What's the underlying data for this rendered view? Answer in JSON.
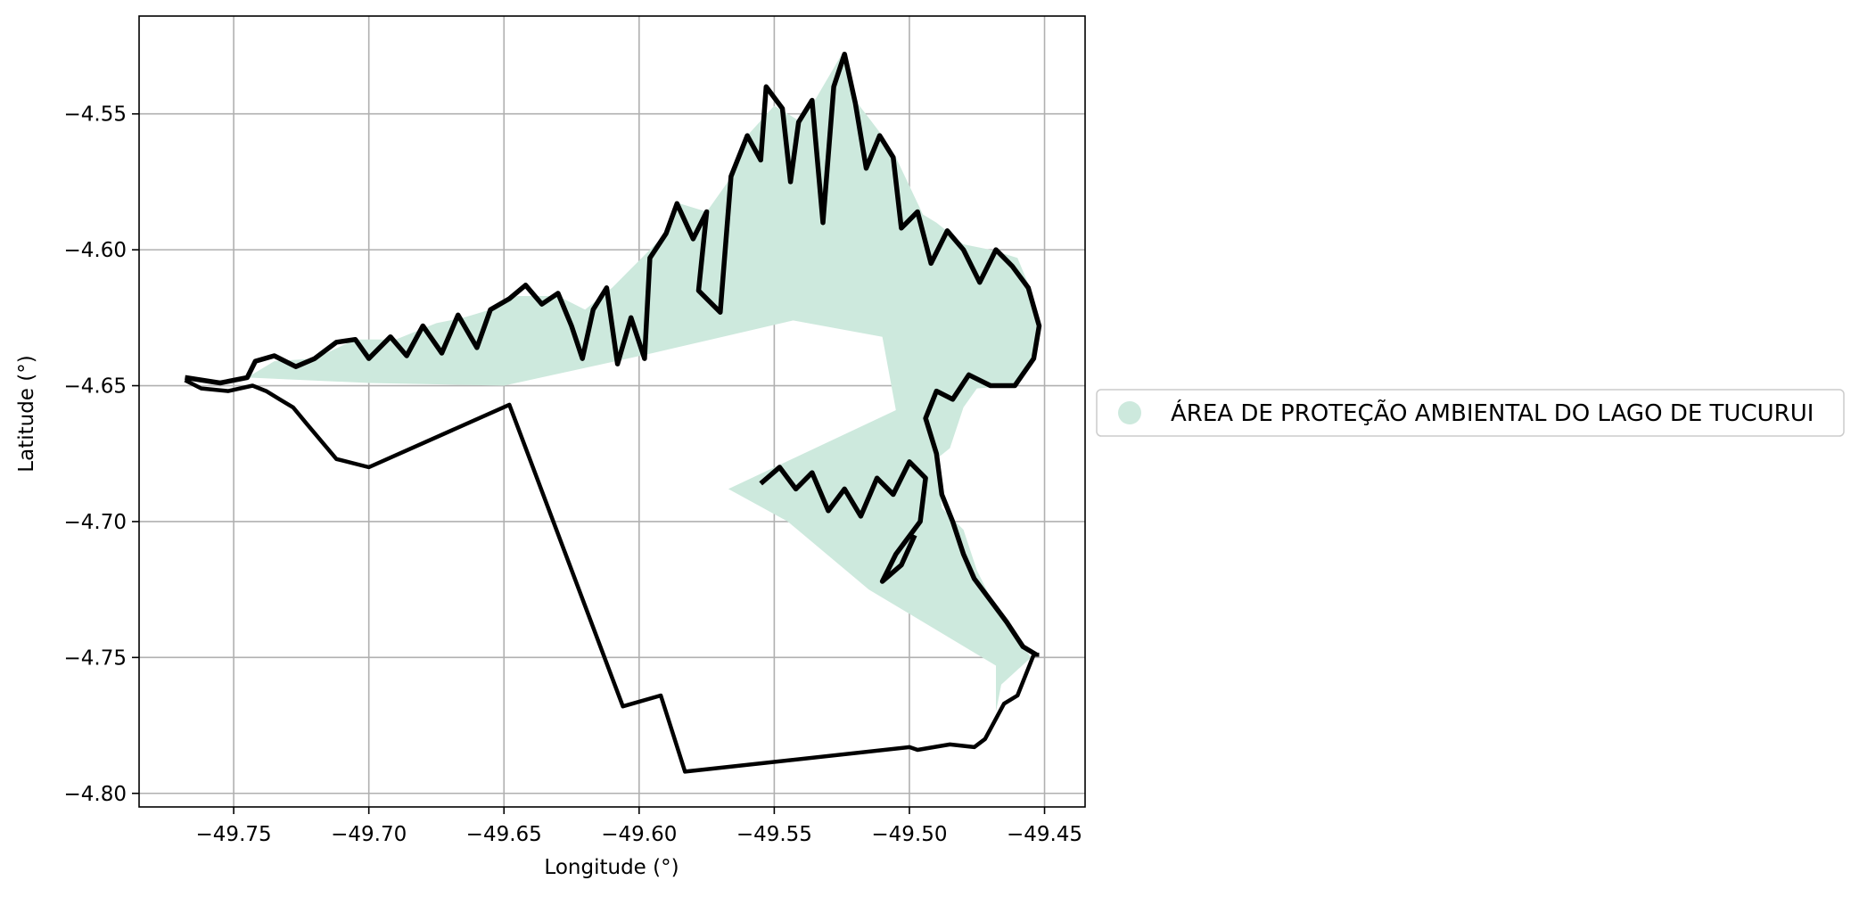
{
  "chart_data": {
    "type": "map",
    "title": "",
    "xlabel": "Longitude (°)",
    "ylabel": "Latitude (°)",
    "xlim": [
      -49.785,
      -49.435
    ],
    "ylim": [
      -4.805,
      -4.514
    ],
    "grid": true,
    "x_ticks": [
      {
        "value": -49.75,
        "label": "−49.75"
      },
      {
        "value": -49.7,
        "label": "−49.70"
      },
      {
        "value": -49.65,
        "label": "−49.65"
      },
      {
        "value": -49.6,
        "label": "−49.60"
      },
      {
        "value": -49.55,
        "label": "−49.55"
      },
      {
        "value": -49.5,
        "label": "−49.50"
      },
      {
        "value": -49.45,
        "label": "−49.45"
      }
    ],
    "y_ticks": [
      {
        "value": -4.55,
        "label": "−4.55"
      },
      {
        "value": -4.6,
        "label": "−4.60"
      },
      {
        "value": -4.65,
        "label": "−4.65"
      },
      {
        "value": -4.7,
        "label": "−4.70"
      },
      {
        "value": -4.75,
        "label": "−4.75"
      },
      {
        "value": -4.8,
        "label": "−4.80"
      }
    ],
    "legend": {
      "placement": "right",
      "entries": [
        {
          "label": "ÁREA DE PROTEÇÃO AMBIENTAL DO LAGO DE TUCURUI",
          "color": "#cde9dd"
        }
      ]
    },
    "protected_area": {
      "name": "ÁREA DE PROTEÇÃO AMBIENTAL DO LAGO DE TUCURUI",
      "fill": "#cde9dd",
      "coords": [
        [
          -49.745,
          -4.647
        ],
        [
          -49.735,
          -4.641
        ],
        [
          -49.72,
          -4.64
        ],
        [
          -49.705,
          -4.633
        ],
        [
          -49.69,
          -4.633
        ],
        [
          -49.675,
          -4.627
        ],
        [
          -49.665,
          -4.625
        ],
        [
          -49.655,
          -4.622
        ],
        [
          -49.645,
          -4.617
        ],
        [
          -49.63,
          -4.617
        ],
        [
          -49.62,
          -4.622
        ],
        [
          -49.61,
          -4.614
        ],
        [
          -49.6,
          -4.604
        ],
        [
          -49.59,
          -4.594
        ],
        [
          -49.585,
          -4.583
        ],
        [
          -49.575,
          -4.586
        ],
        [
          -49.565,
          -4.572
        ],
        [
          -49.56,
          -4.558
        ],
        [
          -49.55,
          -4.547
        ],
        [
          -49.54,
          -4.553
        ],
        [
          -49.535,
          -4.545
        ],
        [
          -49.525,
          -4.528
        ],
        [
          -49.52,
          -4.545
        ],
        [
          -49.51,
          -4.558
        ],
        [
          -49.505,
          -4.566
        ],
        [
          -49.495,
          -4.587
        ],
        [
          -49.49,
          -4.59
        ],
        [
          -49.48,
          -4.598
        ],
        [
          -49.47,
          -4.6
        ],
        [
          -49.46,
          -4.603
        ],
        [
          -49.455,
          -4.615
        ],
        [
          -49.452,
          -4.628
        ],
        [
          -49.455,
          -4.64
        ],
        [
          -49.462,
          -4.65
        ],
        [
          -49.475,
          -4.651
        ],
        [
          -49.48,
          -4.658
        ],
        [
          -49.485,
          -4.673
        ],
        [
          -49.49,
          -4.677
        ],
        [
          -49.488,
          -4.695
        ],
        [
          -49.48,
          -4.703
        ],
        [
          -49.475,
          -4.718
        ],
        [
          -49.47,
          -4.728
        ],
        [
          -49.465,
          -4.735
        ],
        [
          -49.46,
          -4.743
        ],
        [
          -49.455,
          -4.75
        ],
        [
          -49.466,
          -4.76
        ],
        [
          -49.468,
          -4.77
        ],
        [
          -49.468,
          -4.753
        ],
        [
          -49.515,
          -4.725
        ],
        [
          -49.545,
          -4.7
        ],
        [
          -49.567,
          -4.688
        ],
        [
          -49.505,
          -4.659
        ],
        [
          -49.51,
          -4.632
        ],
        [
          -49.543,
          -4.626
        ],
        [
          -49.595,
          -4.638
        ],
        [
          -49.65,
          -4.65
        ],
        [
          -49.7,
          -4.649
        ],
        [
          -49.745,
          -4.647
        ]
      ]
    },
    "administrative_boundary": {
      "stroke": "#000000",
      "coords": [
        [
          -49.768,
          -4.648
        ],
        [
          -49.762,
          -4.651
        ],
        [
          -49.752,
          -4.652
        ],
        [
          -49.743,
          -4.65
        ],
        [
          -49.738,
          -4.652
        ],
        [
          -49.733,
          -4.655
        ],
        [
          -49.728,
          -4.658
        ],
        [
          -49.723,
          -4.664
        ],
        [
          -49.712,
          -4.677
        ],
        [
          -49.7,
          -4.68
        ],
        [
          -49.648,
          -4.657
        ],
        [
          -49.606,
          -4.768
        ],
        [
          -49.592,
          -4.764
        ],
        [
          -49.583,
          -4.792
        ],
        [
          -49.5,
          -4.783
        ],
        [
          -49.497,
          -4.784
        ],
        [
          -49.485,
          -4.782
        ],
        [
          -49.476,
          -4.783
        ],
        [
          -49.472,
          -4.78
        ],
        [
          -49.465,
          -4.767
        ],
        [
          -49.46,
          -4.764
        ],
        [
          -49.454,
          -4.749
        ],
        [
          -49.452,
          -4.749
        ]
      ]
    },
    "shoreline_outline": {
      "stroke": "#000000",
      "coords": [
        [
          -49.768,
          -4.647
        ],
        [
          -49.755,
          -4.649
        ],
        [
          -49.745,
          -4.647
        ],
        [
          -49.742,
          -4.641
        ],
        [
          -49.735,
          -4.639
        ],
        [
          -49.727,
          -4.643
        ],
        [
          -49.72,
          -4.64
        ],
        [
          -49.712,
          -4.634
        ],
        [
          -49.705,
          -4.633
        ],
        [
          -49.7,
          -4.64
        ],
        [
          -49.692,
          -4.632
        ],
        [
          -49.686,
          -4.639
        ],
        [
          -49.68,
          -4.628
        ],
        [
          -49.673,
          -4.638
        ],
        [
          -49.667,
          -4.624
        ],
        [
          -49.66,
          -4.636
        ],
        [
          -49.655,
          -4.622
        ],
        [
          -49.648,
          -4.618
        ],
        [
          -49.642,
          -4.613
        ],
        [
          -49.636,
          -4.62
        ],
        [
          -49.63,
          -4.616
        ],
        [
          -49.625,
          -4.628
        ],
        [
          -49.621,
          -4.64
        ],
        [
          -49.617,
          -4.622
        ],
        [
          -49.612,
          -4.614
        ],
        [
          -49.608,
          -4.642
        ],
        [
          -49.603,
          -4.625
        ],
        [
          -49.598,
          -4.64
        ],
        [
          -49.596,
          -4.603
        ],
        [
          -49.59,
          -4.594
        ],
        [
          -49.586,
          -4.583
        ],
        [
          -49.58,
          -4.596
        ],
        [
          -49.575,
          -4.586
        ],
        [
          -49.578,
          -4.615
        ],
        [
          -49.57,
          -4.623
        ],
        [
          -49.566,
          -4.573
        ],
        [
          -49.56,
          -4.558
        ],
        [
          -49.555,
          -4.567
        ],
        [
          -49.553,
          -4.54
        ],
        [
          -49.547,
          -4.548
        ],
        [
          -49.544,
          -4.575
        ],
        [
          -49.541,
          -4.553
        ],
        [
          -49.536,
          -4.545
        ],
        [
          -49.532,
          -4.59
        ],
        [
          -49.528,
          -4.54
        ],
        [
          -49.524,
          -4.528
        ],
        [
          -49.52,
          -4.546
        ],
        [
          -49.516,
          -4.57
        ],
        [
          -49.511,
          -4.558
        ],
        [
          -49.506,
          -4.566
        ],
        [
          -49.503,
          -4.592
        ],
        [
          -49.497,
          -4.586
        ],
        [
          -49.492,
          -4.605
        ],
        [
          -49.486,
          -4.593
        ],
        [
          -49.48,
          -4.6
        ],
        [
          -49.474,
          -4.612
        ],
        [
          -49.468,
          -4.6
        ],
        [
          -49.462,
          -4.606
        ],
        [
          -49.456,
          -4.614
        ],
        [
          -49.452,
          -4.628
        ],
        [
          -49.454,
          -4.64
        ],
        [
          -49.461,
          -4.65
        ],
        [
          -49.47,
          -4.65
        ],
        [
          -49.478,
          -4.646
        ],
        [
          -49.484,
          -4.655
        ],
        [
          -49.49,
          -4.652
        ],
        [
          -49.494,
          -4.662
        ],
        [
          -49.49,
          -4.675
        ],
        [
          -49.488,
          -4.69
        ],
        [
          -49.484,
          -4.7
        ],
        [
          -49.48,
          -4.712
        ],
        [
          -49.476,
          -4.721
        ],
        [
          -49.47,
          -4.729
        ],
        [
          -49.464,
          -4.737
        ],
        [
          -49.458,
          -4.746
        ],
        [
          -49.453,
          -4.749
        ]
      ]
    },
    "lower_shoreline": {
      "stroke": "#000000",
      "coords": [
        [
          -49.555,
          -4.686
        ],
        [
          -49.548,
          -4.68
        ],
        [
          -49.542,
          -4.688
        ],
        [
          -49.536,
          -4.682
        ],
        [
          -49.53,
          -4.696
        ],
        [
          -49.524,
          -4.688
        ],
        [
          -49.518,
          -4.698
        ],
        [
          -49.512,
          -4.684
        ],
        [
          -49.506,
          -4.69
        ],
        [
          -49.5,
          -4.678
        ],
        [
          -49.494,
          -4.684
        ],
        [
          -49.496,
          -4.7
        ],
        [
          -49.505,
          -4.712
        ],
        [
          -49.51,
          -4.722
        ],
        [
          -49.503,
          -4.716
        ],
        [
          -49.498,
          -4.705
        ]
      ]
    }
  }
}
